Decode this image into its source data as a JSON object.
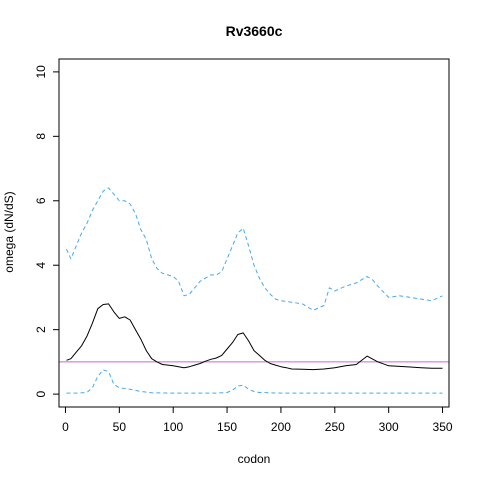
{
  "chart_data": {
    "type": "line",
    "title": "Rv3660c",
    "xlabel": "codon",
    "ylabel": "omega (dN/dS)",
    "xlim": [
      -6,
      356
    ],
    "ylim": [
      -0.4,
      10.4
    ],
    "x_ticks": [
      0,
      50,
      100,
      150,
      200,
      250,
      300,
      350
    ],
    "y_ticks": [
      0,
      2,
      4,
      6,
      8,
      10
    ],
    "grid": false,
    "reference_line": {
      "y": 1,
      "color": "#cc66cc"
    },
    "series": [
      {
        "color": "#000000",
        "style": "solid",
        "x": [
          1,
          5,
          10,
          15,
          20,
          25,
          30,
          35,
          40,
          45,
          50,
          55,
          60,
          65,
          70,
          75,
          80,
          85,
          90,
          95,
          100,
          105,
          110,
          115,
          120,
          125,
          130,
          135,
          140,
          145,
          150,
          155,
          160,
          165,
          170,
          175,
          180,
          185,
          190,
          195,
          200,
          205,
          210,
          220,
          230,
          240,
          250,
          260,
          270,
          280,
          290,
          300,
          310,
          320,
          330,
          340,
          350
        ],
        "y": [
          1.05,
          1.1,
          1.3,
          1.5,
          1.8,
          2.2,
          2.65,
          2.78,
          2.8,
          2.55,
          2.35,
          2.4,
          2.3,
          2.0,
          1.7,
          1.35,
          1.1,
          1.0,
          0.92,
          0.9,
          0.88,
          0.85,
          0.82,
          0.85,
          0.9,
          0.95,
          1.02,
          1.08,
          1.12,
          1.2,
          1.4,
          1.6,
          1.85,
          1.9,
          1.65,
          1.35,
          1.2,
          1.05,
          0.95,
          0.9,
          0.85,
          0.82,
          0.78,
          0.77,
          0.76,
          0.78,
          0.82,
          0.88,
          0.92,
          1.18,
          1.0,
          0.88,
          0.86,
          0.84,
          0.82,
          0.8,
          0.8
        ]
      },
      {
        "color": "#44aaee",
        "style": "dashed",
        "x": [
          1,
          5,
          10,
          15,
          20,
          25,
          30,
          35,
          40,
          45,
          50,
          55,
          60,
          65,
          70,
          75,
          80,
          85,
          90,
          95,
          100,
          105,
          110,
          115,
          120,
          125,
          130,
          135,
          140,
          145,
          150,
          155,
          160,
          165,
          170,
          175,
          180,
          185,
          190,
          195,
          200,
          210,
          220,
          230,
          240,
          245,
          250,
          260,
          270,
          280,
          285,
          290,
          300,
          310,
          320,
          330,
          340,
          350
        ],
        "y": [
          4.5,
          4.2,
          4.6,
          5.0,
          5.3,
          5.7,
          6.0,
          6.3,
          6.4,
          6.2,
          6.0,
          6.0,
          5.9,
          5.6,
          5.1,
          4.8,
          4.2,
          3.9,
          3.75,
          3.7,
          3.65,
          3.5,
          3.05,
          3.1,
          3.3,
          3.5,
          3.6,
          3.7,
          3.7,
          3.8,
          4.2,
          4.6,
          5.0,
          5.15,
          4.6,
          4.0,
          3.6,
          3.3,
          3.1,
          2.95,
          2.9,
          2.85,
          2.8,
          2.6,
          2.75,
          3.3,
          3.2,
          3.35,
          3.45,
          3.65,
          3.55,
          3.35,
          3.0,
          3.05,
          3.0,
          2.95,
          2.9,
          3.05
        ]
      },
      {
        "color": "#44aaee",
        "style": "dashed",
        "x": [
          1,
          10,
          20,
          25,
          30,
          35,
          40,
          45,
          50,
          60,
          70,
          80,
          100,
          140,
          150,
          155,
          160,
          165,
          170,
          175,
          180,
          200,
          250,
          300,
          350
        ],
        "y": [
          0.03,
          0.03,
          0.05,
          0.2,
          0.55,
          0.75,
          0.7,
          0.3,
          0.2,
          0.15,
          0.08,
          0.04,
          0.03,
          0.03,
          0.05,
          0.12,
          0.25,
          0.28,
          0.15,
          0.08,
          0.05,
          0.03,
          0.03,
          0.03,
          0.03
        ]
      }
    ]
  }
}
